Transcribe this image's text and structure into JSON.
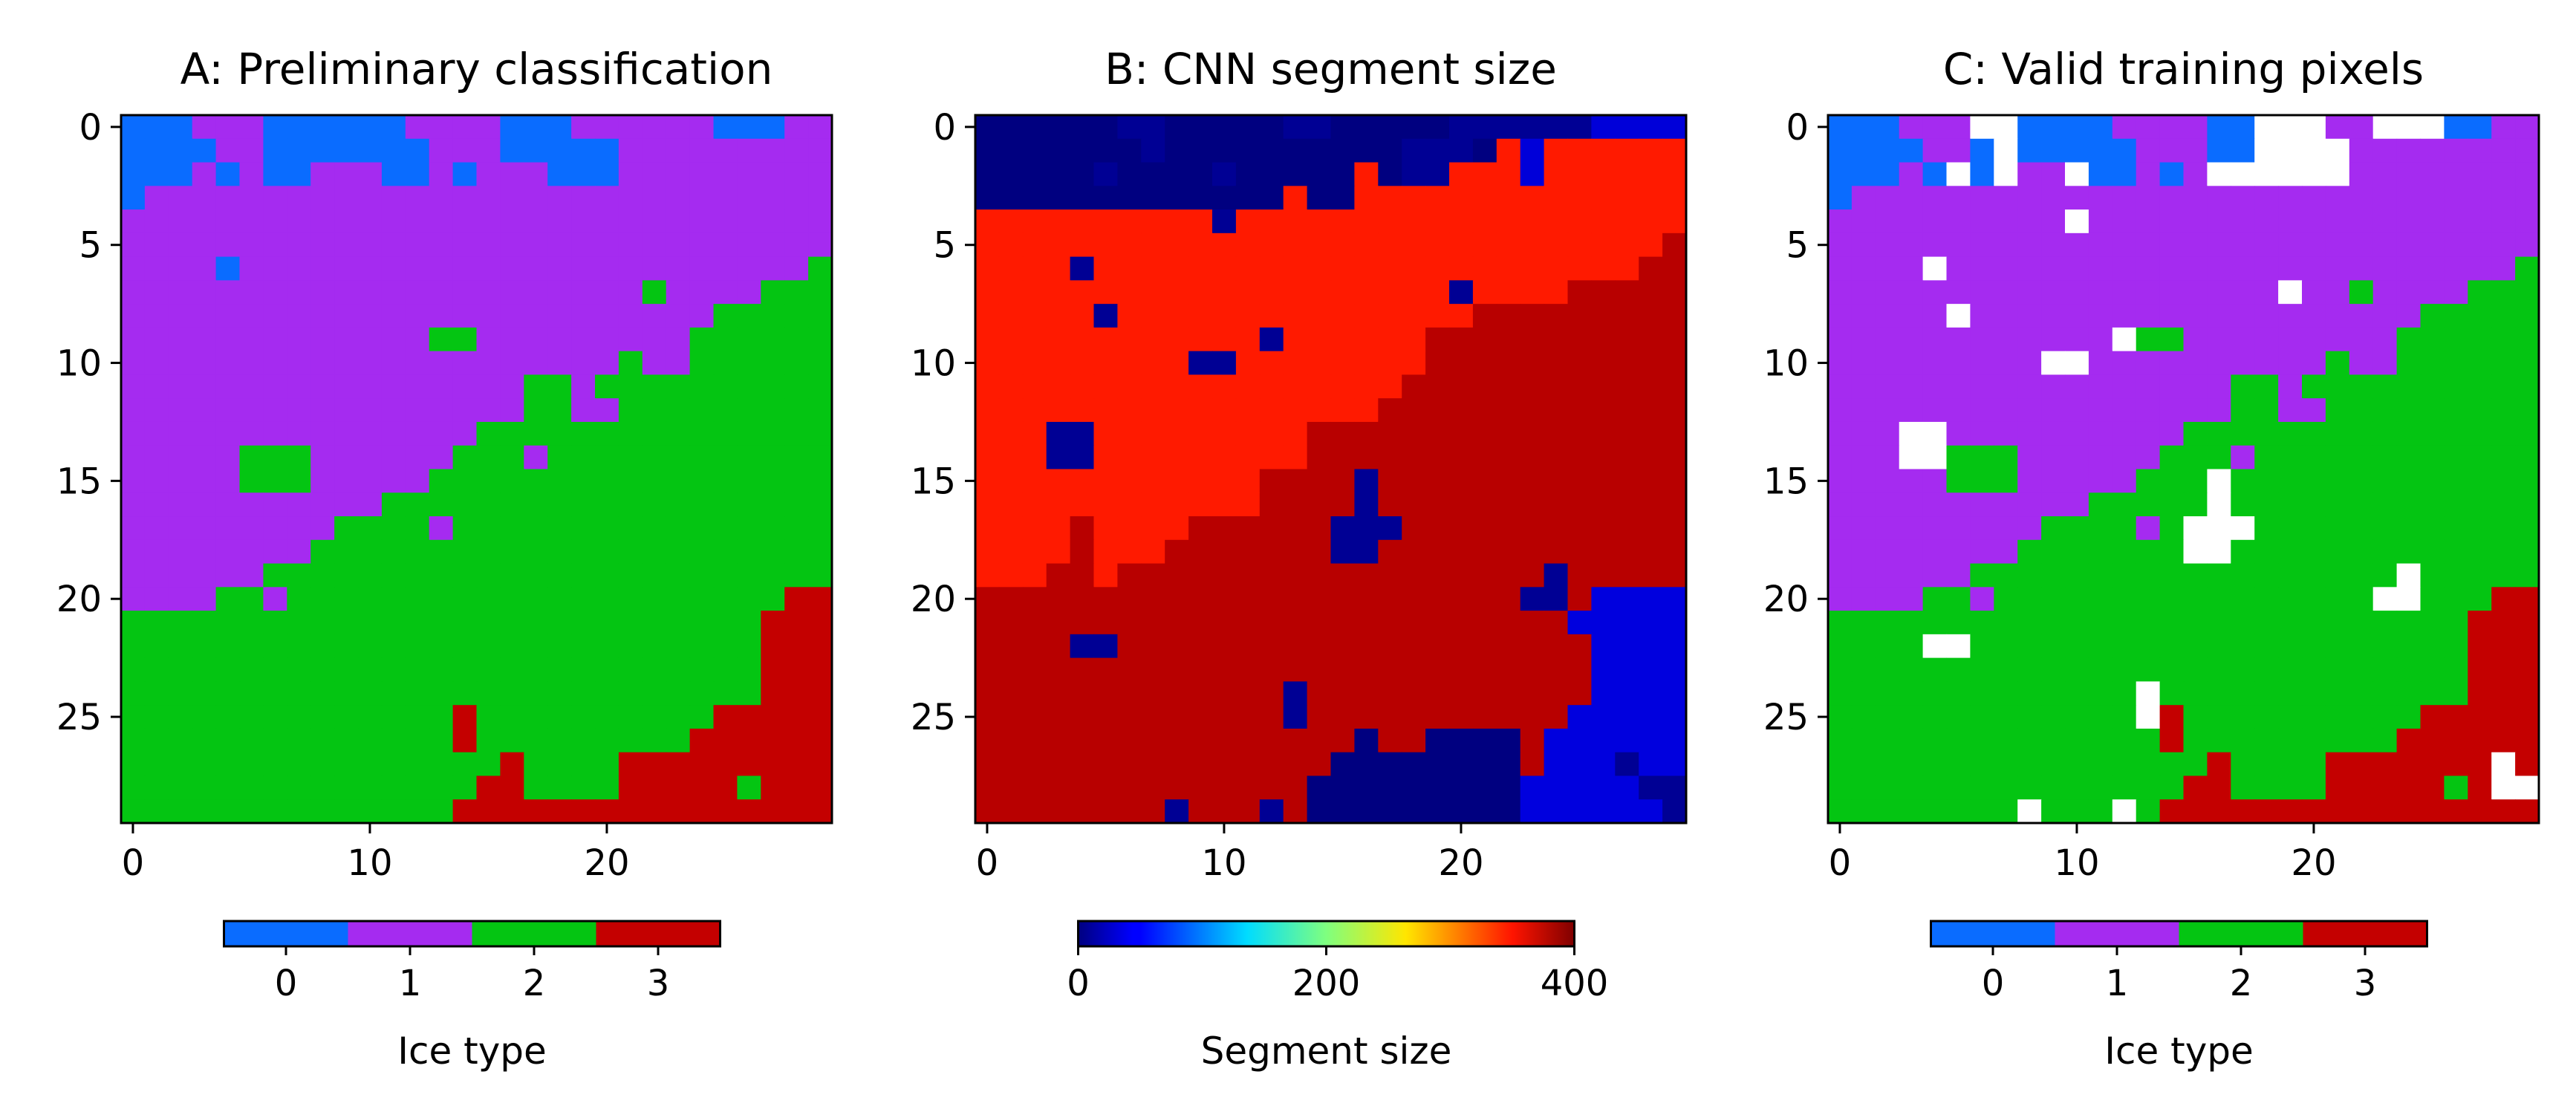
{
  "chart_data": [
    {
      "type": "heatmap",
      "panel": "A",
      "title": "A: Preliminary classification",
      "rows": 30,
      "cols": 30,
      "xticks": [
        0,
        10,
        20
      ],
      "yticks": [
        0,
        5,
        10,
        15,
        20,
        25
      ],
      "colormap": "discrete",
      "classes": [
        0,
        1,
        2,
        3
      ],
      "class_colors": [
        "#0a6cff",
        "#a52bf0",
        "#04c512",
        "#c40000"
      ],
      "colorbar": {
        "label": "Ice type",
        "ticks": [
          "0",
          "1",
          "2",
          "3"
        ]
      },
      "grid": [
        "000111000000111100011111100011",
        "000011000000011100000111111111",
        "000101001110010111000111111111",
        "011111111111111111111111111111",
        "111111111111111111111111111111",
        "111111111111111111111111111111",
        "111101111111111111111111111112",
        "111111111111111111111121111222",
        "111111111111111111111111122222",
        "111111111111122111111111222222",
        "111111111111111111111211222222",
        "111111111111111112212222222222",
        "111111111111111112211222222222",
        "111111111111111222222222222222",
        "111112221111112221222222222222",
        "111112221111122222222222222222",
        "111111111112222222222222222222",
        "111111111222212222222222222222",
        "111111112222222222222222222222",
        "111111222222222222222222222222",
        "111122122222222222222222222233",
        "222222222222222222222222222333",
        "222222222222222222222222222333",
        "222222222222222222222222222333",
        "222222222222222222222222222333",
        "222222222222223222222222233333",
        "222222222222223222222222333333",
        "222222222222222232222333333333",
        "222222222222222332222333332333",
        "222222222222223333333333333333"
      ]
    },
    {
      "type": "heatmap",
      "panel": "B",
      "title": "B: CNN segment size",
      "rows": 30,
      "cols": 30,
      "xticks": [
        0,
        10,
        20
      ],
      "yticks": [
        0,
        5,
        10,
        15,
        20,
        25
      ],
      "colormap": "jet",
      "vmin": 0,
      "vmax": 400,
      "colorbar": {
        "label": "Segment size",
        "ticks": [
          "0",
          "200",
          "400"
        ]
      },
      "value_legend": {
        "0": 0,
        "1": 8,
        "2": 35,
        "3": 340,
        "4": 378,
        "5": 37
      },
      "grid": [
        "000000000000001110000222222222",
        "000000000000000033333332333333",
        "000000000000000033333332333333",
        "033333333333333333333333333333",
        "333333333333333333333333333333",
        "333333333333333333333333333333",
        "333333333333333333333333333333",
        "333333333333333333333333333333",
        "333333333333333333333333333333",
        "333333333333333333333333333333",
        "333333333333333333333333333333",
        "333333333333333333333333333333",
        "333333333333333333333333333333",
        "333333333333333333333333333333",
        "333333333333333333333333333333",
        "333333333333333333333333333333",
        "333333333333333333333333333333",
        "333333333333333333333333333333",
        "333333333333333333333333333333",
        "333333333333333333333333333333",
        "444444444444444444444444444444",
        "444444444444444444444444444444",
        "444444444444444444444444444444",
        "444444444444444444444444444444",
        "444444444444444444444444444444",
        "444444444444444444444444444444",
        "444444444444444444444444444444",
        "444444444444444444444444444444",
        "444444444444444444444444444444",
        "444444444444444444444444444444"
      ],
      "overrides": [
        [
          0,
          0,
          13,
          0
        ],
        [
          1,
          0,
          14,
          0
        ],
        [
          2,
          0,
          13,
          0
        ],
        [
          3,
          0,
          0,
          0
        ],
        [
          3,
          4,
          7,
          0
        ],
        [
          0,
          14,
          16,
          0
        ],
        [
          0,
          17,
          19,
          0
        ],
        [
          1,
          16,
          21,
          0
        ],
        [
          2,
          17,
          19,
          0
        ],
        [
          0,
          23,
          25,
          1
        ],
        [
          0,
          6,
          7,
          1
        ],
        [
          0,
          13,
          14,
          1
        ],
        [
          0,
          20,
          22,
          1
        ],
        [
          1,
          7,
          7,
          1
        ],
        [
          2,
          5,
          5,
          1
        ],
        [
          2,
          10,
          10,
          1
        ],
        [
          1,
          18,
          20,
          1
        ],
        [
          2,
          18,
          19,
          1
        ],
        [
          3,
          1,
          12,
          0
        ],
        [
          3,
          14,
          15,
          0
        ],
        [
          4,
          10,
          10,
          1
        ],
        [
          6,
          4,
          4,
          1
        ],
        [
          7,
          20,
          20,
          1
        ],
        [
          8,
          5,
          5,
          1
        ],
        [
          9,
          12,
          12,
          1
        ],
        [
          10,
          9,
          10,
          1
        ],
        [
          13,
          3,
          4,
          1
        ],
        [
          14,
          3,
          4,
          1
        ],
        [
          15,
          16,
          16,
          1
        ],
        [
          16,
          16,
          16,
          1
        ],
        [
          17,
          15,
          17,
          1
        ],
        [
          18,
          15,
          16,
          1
        ],
        [
          19,
          24,
          24,
          1
        ],
        [
          20,
          23,
          24,
          1
        ],
        [
          22,
          4,
          5,
          1
        ],
        [
          24,
          13,
          13,
          1
        ],
        [
          25,
          13,
          13,
          1
        ],
        [
          20,
          26,
          29,
          5
        ],
        [
          21,
          25,
          29,
          5
        ],
        [
          22,
          26,
          29,
          5
        ],
        [
          23,
          26,
          29,
          5
        ],
        [
          24,
          26,
          29,
          5
        ],
        [
          25,
          25,
          29,
          5
        ],
        [
          26,
          24,
          29,
          5
        ],
        [
          27,
          24,
          29,
          5
        ],
        [
          28,
          23,
          29,
          5
        ],
        [
          29,
          23,
          29,
          5
        ],
        [
          26,
          19,
          22,
          0
        ],
        [
          27,
          17,
          22,
          0
        ],
        [
          28,
          14,
          22,
          0
        ],
        [
          29,
          14,
          22,
          0
        ],
        [
          27,
          15,
          15,
          0
        ],
        [
          28,
          15,
          15,
          0
        ],
        [
          26,
          16,
          16,
          0
        ],
        [
          27,
          16,
          16,
          0
        ],
        [
          27,
          27,
          27,
          1
        ],
        [
          28,
          28,
          29,
          1
        ],
        [
          29,
          29,
          29,
          1
        ],
        [
          29,
          8,
          8,
          1
        ],
        [
          29,
          12,
          12,
          1
        ],
        [
          5,
          29,
          29,
          4
        ],
        [
          6,
          28,
          29,
          4
        ],
        [
          7,
          25,
          29,
          4
        ],
        [
          8,
          21,
          29,
          4
        ],
        [
          9,
          19,
          29,
          4
        ],
        [
          10,
          19,
          29,
          4
        ],
        [
          11,
          18,
          29,
          4
        ],
        [
          12,
          17,
          29,
          4
        ],
        [
          13,
          14,
          29,
          4
        ],
        [
          14,
          14,
          29,
          4
        ],
        [
          15,
          12,
          29,
          4
        ],
        [
          16,
          12,
          29,
          4
        ],
        [
          17,
          9,
          29,
          4
        ],
        [
          18,
          9,
          29,
          4
        ],
        [
          19,
          7,
          29,
          4
        ],
        [
          17,
          4,
          4,
          4
        ],
        [
          18,
          4,
          4,
          4
        ],
        [
          19,
          4,
          4,
          4
        ],
        [
          18,
          8,
          8,
          4
        ],
        [
          19,
          6,
          6,
          4
        ],
        [
          19,
          3,
          3,
          4
        ],
        [
          15,
          16,
          16,
          1
        ],
        [
          16,
          16,
          16,
          1
        ],
        [
          17,
          15,
          17,
          1
        ],
        [
          18,
          15,
          16,
          1
        ],
        [
          19,
          24,
          24,
          1
        ],
        [
          20,
          23,
          24,
          1
        ],
        [
          22,
          4,
          5,
          1
        ],
        [
          24,
          13,
          13,
          1
        ],
        [
          25,
          13,
          13,
          1
        ],
        [
          20,
          26,
          29,
          5
        ],
        [
          21,
          25,
          29,
          5
        ],
        [
          26,
          19,
          22,
          0
        ],
        [
          27,
          17,
          22,
          0
        ],
        [
          28,
          14,
          22,
          0
        ],
        [
          29,
          14,
          22,
          0
        ],
        [
          27,
          15,
          15,
          0
        ],
        [
          28,
          15,
          15,
          0
        ],
        [
          26,
          16,
          16,
          0
        ],
        [
          27,
          16,
          16,
          0
        ],
        [
          27,
          27,
          27,
          1
        ],
        [
          28,
          28,
          29,
          1
        ],
        [
          29,
          29,
          29,
          1
        ],
        [
          29,
          8,
          8,
          1
        ],
        [
          29,
          12,
          12,
          1
        ]
      ]
    },
    {
      "type": "heatmap",
      "panel": "C",
      "title": "C: Valid training pixels",
      "rows": 30,
      "cols": 30,
      "xticks": [
        0,
        10,
        20
      ],
      "yticks": [
        0,
        5,
        10,
        15,
        20,
        25
      ],
      "colormap": "discrete",
      "classes": [
        0,
        1,
        2,
        3
      ],
      "class_colors": [
        "#0a6cff",
        "#a52bf0",
        "#04c512",
        "#c40000"
      ],
      "invalid_color": "#ffffff",
      "colorbar": {
        "label": "Ice type",
        "ticks": [
          "0",
          "1",
          "2",
          "3"
        ]
      },
      "invalid_cells": [
        [
          0,
          6
        ],
        [
          0,
          7
        ],
        [
          0,
          18
        ],
        [
          0,
          19
        ],
        [
          0,
          20
        ],
        [
          0,
          23
        ],
        [
          0,
          24
        ],
        [
          0,
          25
        ],
        [
          1,
          7
        ],
        [
          1,
          18
        ],
        [
          1,
          19
        ],
        [
          1,
          20
        ],
        [
          1,
          21
        ],
        [
          2,
          5
        ],
        [
          2,
          7
        ],
        [
          2,
          10
        ],
        [
          2,
          16
        ],
        [
          2,
          17
        ],
        [
          2,
          18
        ],
        [
          2,
          19
        ],
        [
          2,
          20
        ],
        [
          2,
          21
        ],
        [
          4,
          10
        ],
        [
          6,
          4
        ],
        [
          7,
          19
        ],
        [
          8,
          5
        ],
        [
          9,
          12
        ],
        [
          10,
          9
        ],
        [
          10,
          10
        ],
        [
          13,
          3
        ],
        [
          13,
          4
        ],
        [
          14,
          3
        ],
        [
          14,
          4
        ],
        [
          15,
          16
        ],
        [
          16,
          16
        ],
        [
          17,
          15
        ],
        [
          17,
          16
        ],
        [
          17,
          17
        ],
        [
          18,
          15
        ],
        [
          18,
          16
        ],
        [
          19,
          24
        ],
        [
          20,
          23
        ],
        [
          20,
          24
        ],
        [
          22,
          4
        ],
        [
          22,
          5
        ],
        [
          24,
          13
        ],
        [
          25,
          13
        ],
        [
          27,
          28
        ],
        [
          28,
          28
        ],
        [
          28,
          29
        ],
        [
          29,
          8
        ],
        [
          29,
          12
        ]
      ]
    }
  ]
}
